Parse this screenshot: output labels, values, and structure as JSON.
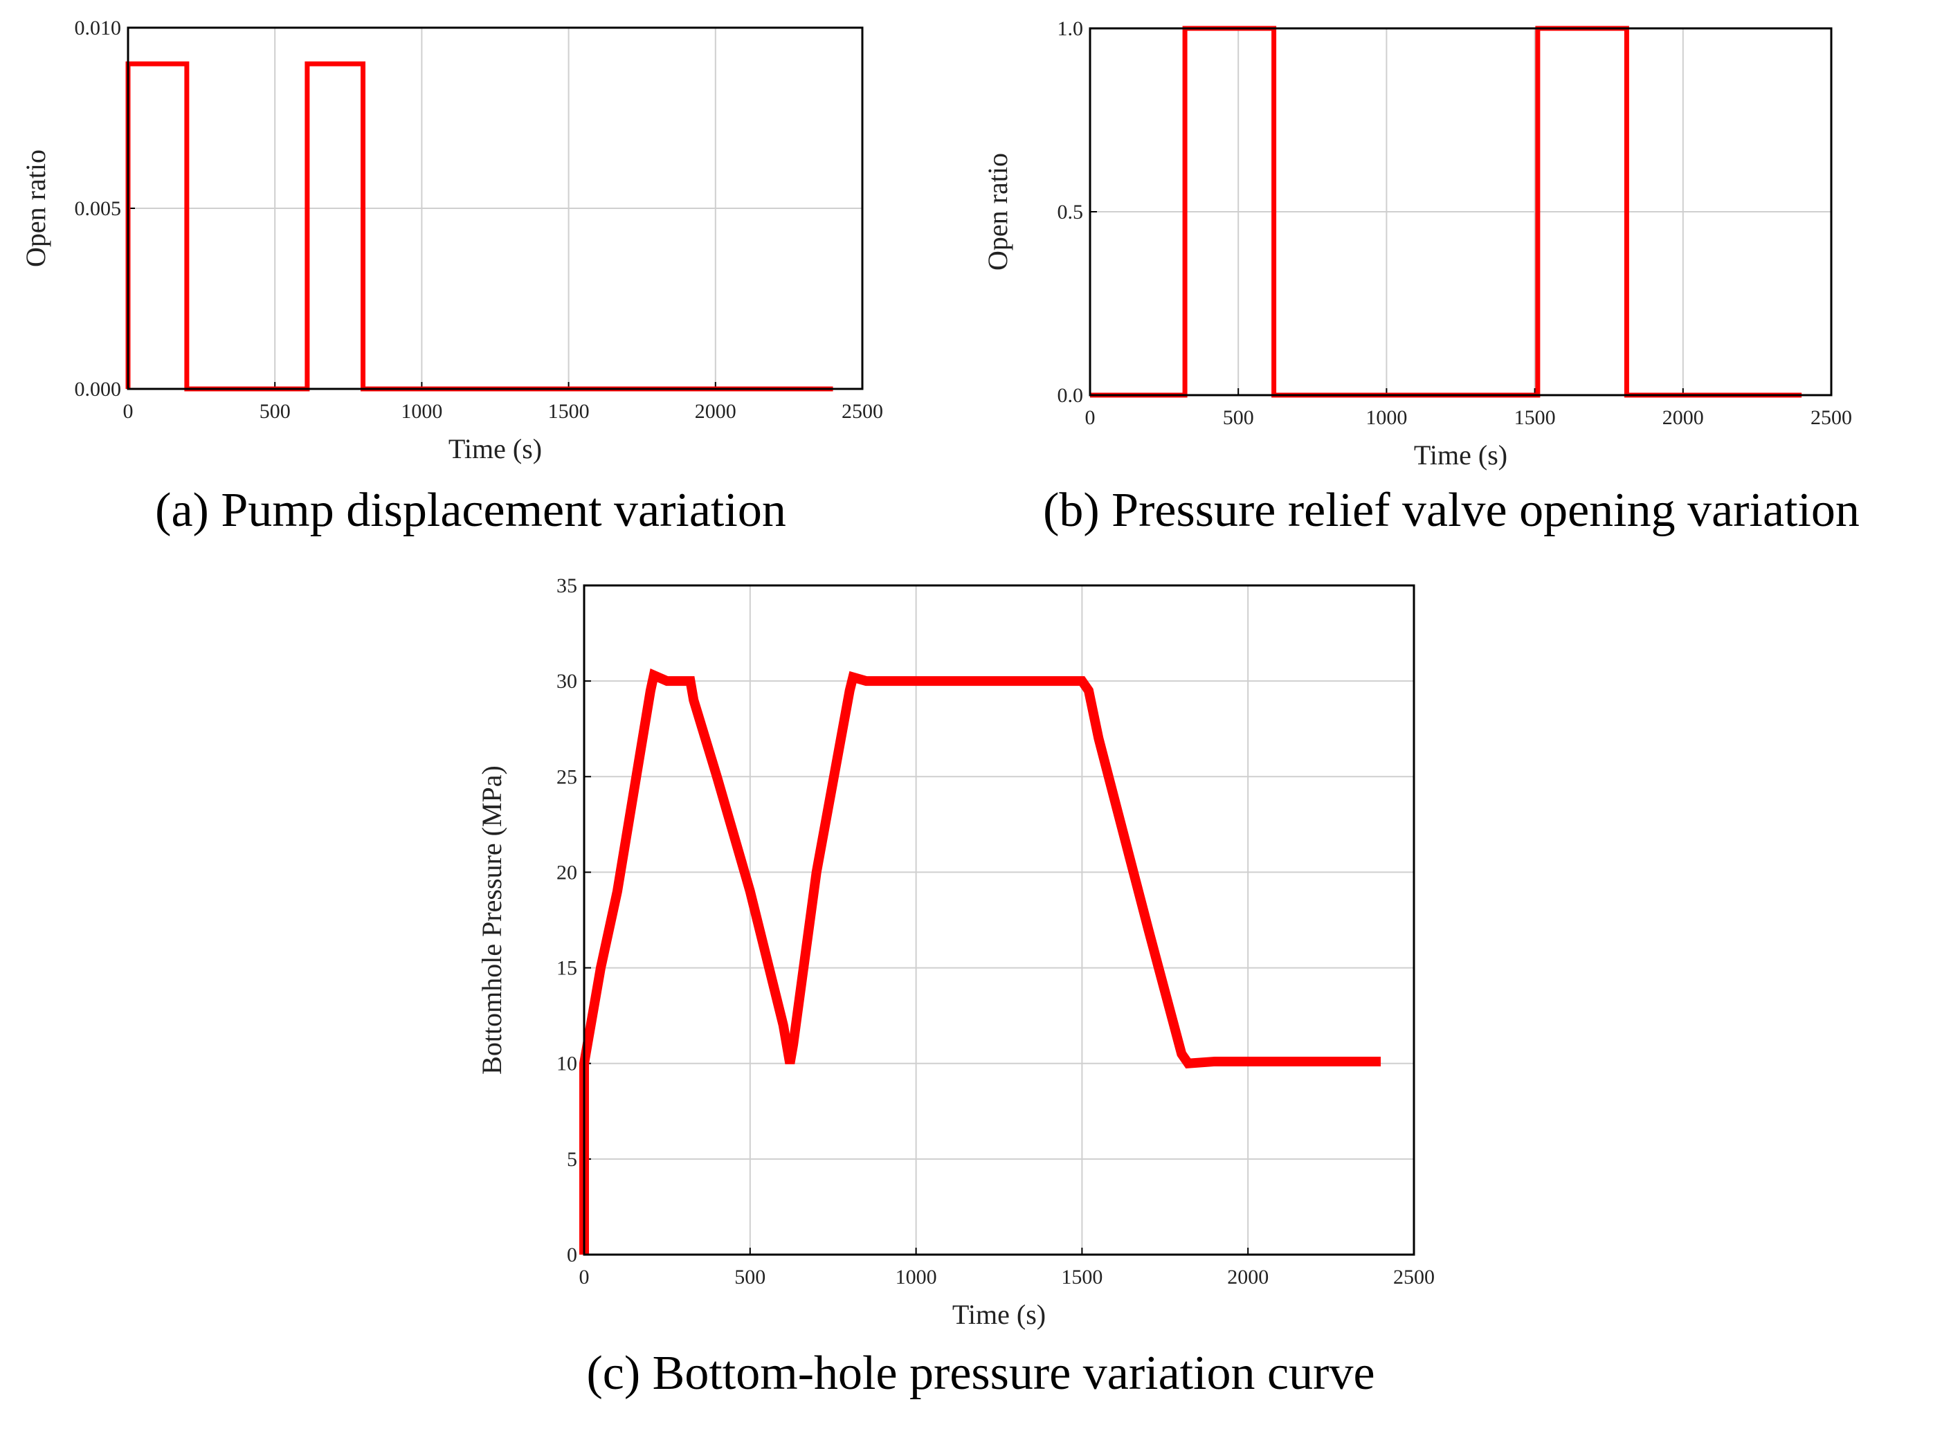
{
  "chart_data": [
    {
      "type": "line",
      "caption": "(a) Pump displacement variation",
      "xlabel": "Time (s)",
      "ylabel": "Open ratio",
      "xlim": [
        0,
        2500
      ],
      "xticks": [
        0,
        500,
        1000,
        1500,
        2000,
        2500
      ],
      "ylim": [
        0,
        0.01
      ],
      "yticks": [
        {
          "value": 0,
          "label": "0.000"
        },
        {
          "value": 0.005,
          "label": "0.005"
        },
        {
          "value": 0.01,
          "label": "0.010"
        }
      ],
      "grid": true,
      "color": "#ff0000",
      "x": [
        0,
        0,
        200,
        200,
        610,
        610,
        800,
        800,
        2400
      ],
      "values": [
        0,
        0.009,
        0.009,
        0,
        0,
        0.009,
        0.009,
        0,
        0
      ]
    },
    {
      "type": "line",
      "caption": "(b) Pressure relief valve opening variation",
      "xlabel": "Time (s)",
      "ylabel": "Open ratio",
      "xlim": [
        0,
        2500
      ],
      "xticks": [
        0,
        500,
        1000,
        1500,
        2000,
        2500
      ],
      "ylim": [
        0,
        1
      ],
      "yticks": [
        {
          "value": 0,
          "label": "0.0"
        },
        {
          "value": 0.5,
          "label": "0.5"
        },
        {
          "value": 1,
          "label": "1.0"
        }
      ],
      "grid": true,
      "color": "#ff0000",
      "x": [
        0,
        320,
        320,
        620,
        620,
        1510,
        1510,
        1810,
        1810,
        2400
      ],
      "values": [
        0,
        0,
        1,
        1,
        0,
        0,
        1,
        1,
        0,
        0
      ]
    },
    {
      "type": "line",
      "caption": "(c) Bottom-hole pressure variation curve",
      "xlabel": "Time (s)",
      "ylabel": "Bottomhole Pressure (MPa)",
      "xlim": [
        0,
        2500
      ],
      "xticks": [
        0,
        500,
        1000,
        1500,
        2000,
        2500
      ],
      "ylim": [
        0,
        35
      ],
      "yticks": [
        0,
        5,
        10,
        15,
        20,
        25,
        30,
        35
      ],
      "grid": true,
      "color": "#ff0000",
      "x": [
        0,
        0,
        10,
        50,
        100,
        200,
        210,
        250,
        320,
        330,
        400,
        500,
        600,
        620,
        630,
        700,
        800,
        810,
        850,
        900,
        1000,
        1200,
        1500,
        1520,
        1550,
        1700,
        1800,
        1820,
        1900,
        2000,
        2400
      ],
      "values": [
        0,
        10,
        11,
        15,
        19,
        29.5,
        30.3,
        30,
        30,
        29,
        25,
        19,
        12,
        10,
        11,
        20,
        29.5,
        30.2,
        30,
        30,
        30,
        30,
        30,
        29.5,
        27,
        17,
        10.5,
        10,
        10.1,
        10.1,
        10.1
      ]
    }
  ]
}
